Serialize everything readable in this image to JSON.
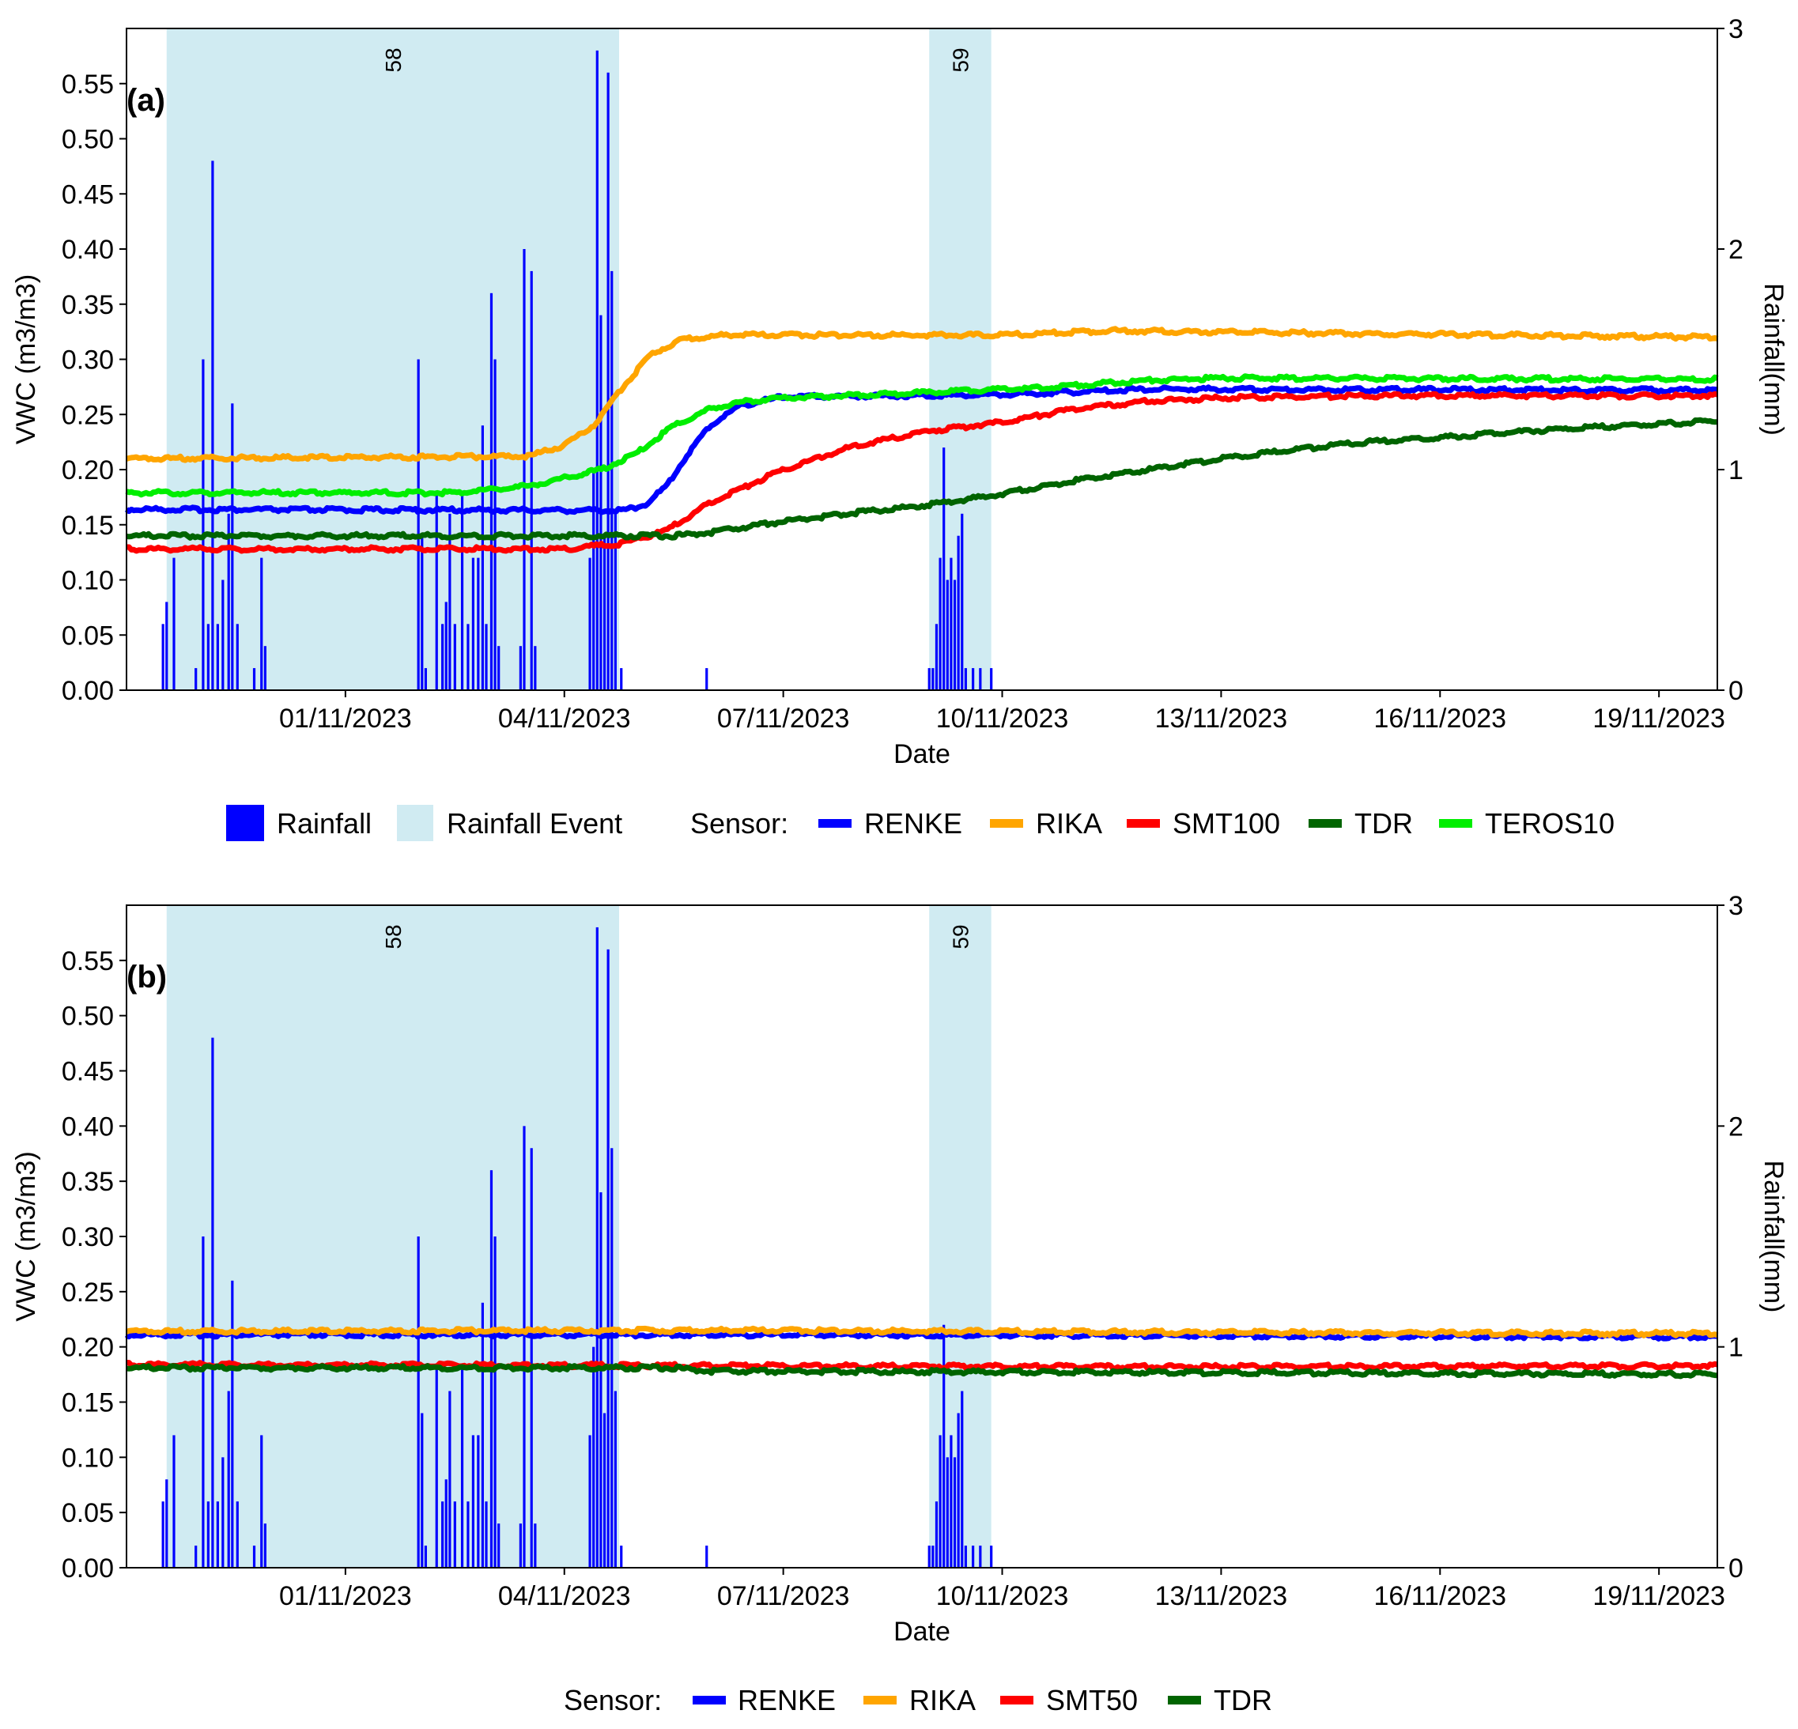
{
  "chart_data": [
    {
      "type": "line",
      "panel_label": "(a)",
      "xlabel": "Date",
      "ylabel": "VWC (m3/m3)",
      "y2label": "Rainfall(mm)",
      "x_unit": "days since 29/10/2023 00:00",
      "xlim": [
        0,
        21.8
      ],
      "ylim": [
        0,
        0.6
      ],
      "y2lim": [
        0,
        3
      ],
      "x_ticks": [
        {
          "x": 3,
          "label": "01/11/2023"
        },
        {
          "x": 6,
          "label": "04/11/2023"
        },
        {
          "x": 9,
          "label": "07/11/2023"
        },
        {
          "x": 12,
          "label": "10/11/2023"
        },
        {
          "x": 15,
          "label": "13/11/2023"
        },
        {
          "x": 18,
          "label": "16/11/2023"
        },
        {
          "x": 21,
          "label": "19/11/2023"
        }
      ],
      "y_ticks": [
        "0.00",
        "0.05",
        "0.10",
        "0.15",
        "0.20",
        "0.25",
        "0.30",
        "0.35",
        "0.40",
        "0.45",
        "0.50",
        "0.55"
      ],
      "y2_ticks": [
        "0",
        "1",
        "2",
        "3"
      ],
      "rainfall_events": [
        {
          "label": "58",
          "start": 0.55,
          "end": 6.75
        },
        {
          "label": "59",
          "start": 11.0,
          "end": 11.85
        }
      ],
      "rainfall": [
        [
          0.5,
          0.3
        ],
        [
          0.55,
          0.4
        ],
        [
          0.65,
          0.6
        ],
        [
          0.95,
          0.1
        ],
        [
          1.05,
          1.5
        ],
        [
          1.12,
          0.3
        ],
        [
          1.18,
          2.4
        ],
        [
          1.25,
          0.3
        ],
        [
          1.32,
          0.5
        ],
        [
          1.4,
          0.8
        ],
        [
          1.45,
          1.3
        ],
        [
          1.52,
          0.3
        ],
        [
          1.75,
          0.1
        ],
        [
          1.85,
          0.6
        ],
        [
          1.9,
          0.2
        ],
        [
          4.0,
          1.5
        ],
        [
          4.05,
          0.7
        ],
        [
          4.1,
          0.1
        ],
        [
          4.25,
          0.9
        ],
        [
          4.33,
          0.3
        ],
        [
          4.38,
          0.4
        ],
        [
          4.43,
          0.8
        ],
        [
          4.5,
          0.3
        ],
        [
          4.6,
          0.9
        ],
        [
          4.68,
          0.3
        ],
        [
          4.75,
          0.6
        ],
        [
          4.82,
          0.6
        ],
        [
          4.88,
          1.2
        ],
        [
          4.93,
          0.3
        ],
        [
          5.0,
          1.8
        ],
        [
          5.05,
          1.5
        ],
        [
          5.1,
          0.2
        ],
        [
          5.4,
          0.2
        ],
        [
          5.45,
          2.0
        ],
        [
          5.55,
          1.9
        ],
        [
          5.6,
          0.2
        ],
        [
          6.35,
          0.6
        ],
        [
          6.4,
          1.0
        ],
        [
          6.45,
          2.9
        ],
        [
          6.5,
          1.7
        ],
        [
          6.55,
          0.7
        ],
        [
          6.6,
          2.8
        ],
        [
          6.65,
          1.9
        ],
        [
          6.7,
          0.8
        ],
        [
          6.78,
          0.1
        ],
        [
          7.95,
          0.1
        ],
        [
          11.0,
          0.1
        ],
        [
          11.05,
          0.1
        ],
        [
          11.1,
          0.3
        ],
        [
          11.15,
          0.6
        ],
        [
          11.2,
          1.1
        ],
        [
          11.25,
          0.5
        ],
        [
          11.3,
          0.6
        ],
        [
          11.35,
          0.5
        ],
        [
          11.4,
          0.7
        ],
        [
          11.45,
          0.8
        ],
        [
          11.5,
          0.1
        ],
        [
          11.6,
          0.1
        ],
        [
          11.7,
          0.1
        ],
        [
          11.85,
          0.1
        ]
      ],
      "series": [
        {
          "name": "RENKE",
          "color": "#0000ff",
          "points": [
            [
              0,
              0.164
            ],
            [
              6.8,
              0.163
            ],
            [
              7.1,
              0.168
            ],
            [
              7.4,
              0.185
            ],
            [
              7.7,
              0.215
            ],
            [
              8.0,
              0.24
            ],
            [
              8.4,
              0.258
            ],
            [
              9.0,
              0.266
            ],
            [
              12.0,
              0.268
            ],
            [
              14.0,
              0.273
            ],
            [
              21.8,
              0.272
            ]
          ]
        },
        {
          "name": "RIKA",
          "color": "#ffa500",
          "points": [
            [
              0,
              0.21
            ],
            [
              5.5,
              0.212
            ],
            [
              6.0,
              0.222
            ],
            [
              6.4,
              0.24
            ],
            [
              6.8,
              0.275
            ],
            [
              7.2,
              0.305
            ],
            [
              7.6,
              0.318
            ],
            [
              8.2,
              0.322
            ],
            [
              12,
              0.322
            ],
            [
              13.5,
              0.326
            ],
            [
              16,
              0.324
            ],
            [
              21.8,
              0.32
            ]
          ]
        },
        {
          "name": "SMT100",
          "color": "#ff0000",
          "points": [
            [
              0,
              0.128
            ],
            [
              6.0,
              0.128
            ],
            [
              6.8,
              0.133
            ],
            [
              7.4,
              0.145
            ],
            [
              8.0,
              0.17
            ],
            [
              9.0,
              0.2
            ],
            [
              10.0,
              0.222
            ],
            [
              11.0,
              0.235
            ],
            [
              12.0,
              0.243
            ],
            [
              13.0,
              0.255
            ],
            [
              14.0,
              0.262
            ],
            [
              15.0,
              0.265
            ],
            [
              17.0,
              0.267
            ],
            [
              21.8,
              0.267
            ]
          ]
        },
        {
          "name": "TDR",
          "color": "#006400",
          "points": [
            [
              0,
              0.14
            ],
            [
              7.5,
              0.14
            ],
            [
              8.0,
              0.143
            ],
            [
              8.5,
              0.148
            ],
            [
              9.0,
              0.153
            ],
            [
              10.0,
              0.161
            ],
            [
              11.0,
              0.168
            ],
            [
              12.0,
              0.178
            ],
            [
              13.0,
              0.19
            ],
            [
              14.0,
              0.2
            ],
            [
              15.0,
              0.21
            ],
            [
              16.0,
              0.218
            ],
            [
              17.0,
              0.225
            ],
            [
              18.0,
              0.229
            ],
            [
              19.0,
              0.234
            ],
            [
              20.0,
              0.238
            ],
            [
              21.8,
              0.244
            ]
          ]
        },
        {
          "name": "TEROS10",
          "color": "#00ee00",
          "points": [
            [
              0,
              0.179
            ],
            [
              4.5,
              0.179
            ],
            [
              5.5,
              0.185
            ],
            [
              6.5,
              0.2
            ],
            [
              7.0,
              0.215
            ],
            [
              7.5,
              0.24
            ],
            [
              8.0,
              0.255
            ],
            [
              8.5,
              0.262
            ],
            [
              9.0,
              0.265
            ],
            [
              11.0,
              0.27
            ],
            [
              12.5,
              0.274
            ],
            [
              14.0,
              0.281
            ],
            [
              15.0,
              0.283
            ],
            [
              21.8,
              0.282
            ]
          ]
        }
      ],
      "legend": {
        "rainfall_label": "Rainfall",
        "event_label": "Rainfall Event",
        "sensor_title": "Sensor:",
        "sensors": [
          "RENKE",
          "RIKA",
          "SMT100",
          "TDR",
          "TEROS10"
        ],
        "placement": "bottom"
      }
    },
    {
      "type": "line",
      "panel_label": "(b)",
      "xlabel": "Date",
      "ylabel": "VWC (m3/m3)",
      "y2label": "Rainfall(mm)",
      "x_unit": "days since 29/10/2023 00:00",
      "xlim": [
        0,
        21.8
      ],
      "ylim": [
        0,
        0.6
      ],
      "y2lim": [
        0,
        3
      ],
      "x_ticks": [
        {
          "x": 3,
          "label": "01/11/2023"
        },
        {
          "x": 6,
          "label": "04/11/2023"
        },
        {
          "x": 9,
          "label": "07/11/2023"
        },
        {
          "x": 12,
          "label": "10/11/2023"
        },
        {
          "x": 15,
          "label": "13/11/2023"
        },
        {
          "x": 18,
          "label": "16/11/2023"
        },
        {
          "x": 21,
          "label": "19/11/2023"
        }
      ],
      "y_ticks": [
        "0.00",
        "0.05",
        "0.10",
        "0.15",
        "0.20",
        "0.25",
        "0.30",
        "0.35",
        "0.40",
        "0.45",
        "0.50",
        "0.55"
      ],
      "y2_ticks": [
        "0",
        "1",
        "2",
        "3"
      ],
      "rainfall_events": [
        {
          "label": "58",
          "start": 0.55,
          "end": 6.75
        },
        {
          "label": "59",
          "start": 11.0,
          "end": 11.85
        }
      ],
      "rainfall": [
        [
          0.5,
          0.3
        ],
        [
          0.55,
          0.4
        ],
        [
          0.65,
          0.6
        ],
        [
          0.95,
          0.1
        ],
        [
          1.05,
          1.5
        ],
        [
          1.12,
          0.3
        ],
        [
          1.18,
          2.4
        ],
        [
          1.25,
          0.3
        ],
        [
          1.32,
          0.5
        ],
        [
          1.4,
          0.8
        ],
        [
          1.45,
          1.3
        ],
        [
          1.52,
          0.3
        ],
        [
          1.75,
          0.1
        ],
        [
          1.85,
          0.6
        ],
        [
          1.9,
          0.2
        ],
        [
          4.0,
          1.5
        ],
        [
          4.05,
          0.7
        ],
        [
          4.1,
          0.1
        ],
        [
          4.25,
          0.9
        ],
        [
          4.33,
          0.3
        ],
        [
          4.38,
          0.4
        ],
        [
          4.43,
          0.8
        ],
        [
          4.5,
          0.3
        ],
        [
          4.6,
          0.9
        ],
        [
          4.68,
          0.3
        ],
        [
          4.75,
          0.6
        ],
        [
          4.82,
          0.6
        ],
        [
          4.88,
          1.2
        ],
        [
          4.93,
          0.3
        ],
        [
          5.0,
          1.8
        ],
        [
          5.05,
          1.5
        ],
        [
          5.1,
          0.2
        ],
        [
          5.4,
          0.2
        ],
        [
          5.45,
          2.0
        ],
        [
          5.55,
          1.9
        ],
        [
          5.6,
          0.2
        ],
        [
          6.35,
          0.6
        ],
        [
          6.4,
          1.0
        ],
        [
          6.45,
          2.9
        ],
        [
          6.5,
          1.7
        ],
        [
          6.55,
          0.7
        ],
        [
          6.6,
          2.8
        ],
        [
          6.65,
          1.9
        ],
        [
          6.7,
          0.8
        ],
        [
          6.78,
          0.1
        ],
        [
          7.95,
          0.1
        ],
        [
          11.0,
          0.1
        ],
        [
          11.05,
          0.1
        ],
        [
          11.1,
          0.3
        ],
        [
          11.15,
          0.6
        ],
        [
          11.2,
          1.1
        ],
        [
          11.25,
          0.5
        ],
        [
          11.3,
          0.6
        ],
        [
          11.35,
          0.5
        ],
        [
          11.4,
          0.7
        ],
        [
          11.45,
          0.8
        ],
        [
          11.5,
          0.1
        ],
        [
          11.6,
          0.1
        ],
        [
          11.7,
          0.1
        ],
        [
          11.85,
          0.1
        ]
      ],
      "series": [
        {
          "name": "RENKE",
          "color": "#0000ff",
          "points": [
            [
              0,
              0.211
            ],
            [
              10,
              0.211
            ],
            [
              21.8,
              0.209
            ]
          ]
        },
        {
          "name": "RIKA",
          "color": "#ffa500",
          "points": [
            [
              0,
              0.214
            ],
            [
              8,
              0.215
            ],
            [
              12,
              0.214
            ],
            [
              16,
              0.213
            ],
            [
              21.8,
              0.212
            ]
          ]
        },
        {
          "name": "SMT50",
          "color": "#ff0000",
          "points": [
            [
              0,
              0.184
            ],
            [
              8,
              0.183
            ],
            [
              14,
              0.182
            ],
            [
              21.8,
              0.183
            ]
          ]
        },
        {
          "name": "TDR",
          "color": "#006400",
          "points": [
            [
              0,
              0.181
            ],
            [
              7.5,
              0.181
            ],
            [
              8.0,
              0.178
            ],
            [
              14,
              0.177
            ],
            [
              21.8,
              0.175
            ]
          ]
        }
      ],
      "legend": {
        "sensor_title": "Sensor:",
        "sensors": [
          "RENKE",
          "RIKA",
          "SMT50",
          "TDR"
        ],
        "placement": "bottom"
      }
    }
  ]
}
